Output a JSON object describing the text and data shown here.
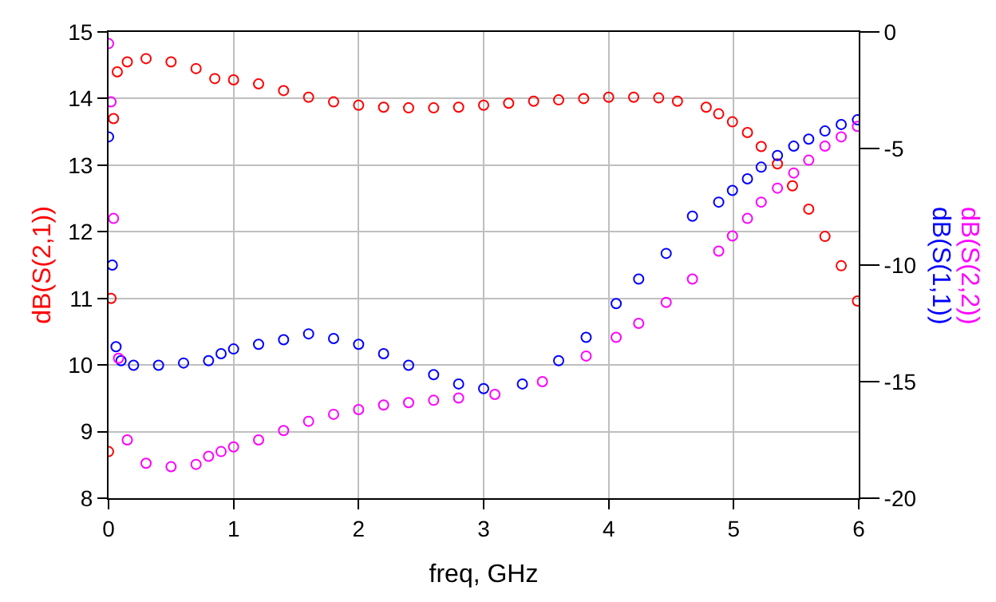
{
  "chart_data": {
    "type": "scatter",
    "xlabel": "freq, GHz",
    "ylabel": "dB(S(2,1))",
    "y2label": [
      "dB(S(1,1))",
      "dB(S(2,2))"
    ],
    "xlim": [
      0,
      6
    ],
    "xticks": [
      0,
      1,
      2,
      3,
      4,
      5,
      6
    ],
    "ylim": [
      8,
      15
    ],
    "yticks": [
      8,
      9,
      10,
      11,
      12,
      13,
      14,
      15
    ],
    "y2lim": [
      -20,
      0
    ],
    "y2ticks": [
      -20,
      -15,
      -10,
      -5,
      0
    ],
    "grid": true,
    "marker": "circle",
    "series": [
      {
        "color": "#ff0000",
        "x": [
          0,
          0.02,
          0.04,
          0.07,
          0.15,
          0.3,
          0.5,
          0.7,
          0.85,
          1.0,
          1.2,
          1.4,
          1.6,
          1.8,
          2.0,
          2.2,
          2.4,
          2.6,
          2.8,
          3.0,
          3.2,
          3.4,
          3.6,
          3.8,
          4.0,
          4.2,
          4.4,
          4.55,
          4.78,
          4.88,
          4.99,
          5.11,
          5.22,
          5.35,
          5.47,
          5.6,
          5.73,
          5.86,
          5.99
        ],
        "values": [
          8.7,
          11,
          13.7,
          14.4,
          14.55,
          14.6,
          14.55,
          14.45,
          14.3,
          14.28,
          14.22,
          14.12,
          14.02,
          13.95,
          13.9,
          13.87,
          13.86,
          13.86,
          13.87,
          13.9,
          13.93,
          13.96,
          13.98,
          14.0,
          14.02,
          14.02,
          14.01,
          13.96,
          13.87,
          13.77,
          13.65,
          13.49,
          13.28,
          13.02,
          12.69,
          12.34,
          11.93,
          11.49,
          10.96
        ]
      },
      {
        "color": "#0000ff",
        "axis": "y2",
        "x": [
          0,
          0.03,
          0.06,
          0.1,
          0.2,
          0.4,
          0.6,
          0.8,
          0.9,
          1.0,
          1.2,
          1.4,
          1.6,
          1.8,
          2.0,
          2.2,
          2.4,
          2.6,
          2.8,
          3.0,
          3.31,
          3.6,
          3.82,
          4.06,
          4.24,
          4.46,
          4.67,
          4.88,
          4.99,
          5.11,
          5.22,
          5.35,
          5.48,
          5.6,
          5.73,
          5.86,
          5.99
        ],
        "values": [
          -4.5,
          -10,
          -13.5,
          -14.1,
          -14.3,
          -14.3,
          -14.2,
          -14.1,
          -13.8,
          -13.6,
          -13.4,
          -13.2,
          -12.95,
          -13.15,
          -13.4,
          -13.8,
          -14.3,
          -14.7,
          -15.1,
          -15.3,
          -15.1,
          -14.1,
          -13.1,
          -11.65,
          -10.6,
          -9.5,
          -7.9,
          -7.3,
          -6.8,
          -6.3,
          -5.8,
          -5.3,
          -4.9,
          -4.6,
          -4.25,
          -3.97,
          -3.77
        ]
      },
      {
        "color": "#ff00ff",
        "axis": "y2",
        "x": [
          0,
          0.02,
          0.04,
          0.08,
          0.15,
          0.3,
          0.5,
          0.7,
          0.8,
          0.9,
          1.0,
          1.2,
          1.4,
          1.6,
          1.8,
          2.0,
          2.2,
          2.4,
          2.6,
          2.8,
          3.09,
          3.47,
          3.82,
          4.06,
          4.24,
          4.46,
          4.67,
          4.88,
          4.99,
          5.11,
          5.22,
          5.35,
          5.48,
          5.6,
          5.73,
          5.86,
          5.99
        ],
        "values": [
          -0.5,
          -3,
          -8,
          -14,
          -17.5,
          -18.5,
          -18.65,
          -18.55,
          -18.2,
          -18.0,
          -17.8,
          -17.5,
          -17.1,
          -16.7,
          -16.4,
          -16.2,
          -16.0,
          -15.9,
          -15.8,
          -15.7,
          -15.55,
          -15.0,
          -13.9,
          -13.1,
          -12.5,
          -11.6,
          -10.6,
          -9.4,
          -8.75,
          -8.0,
          -7.3,
          -6.7,
          -6.05,
          -5.5,
          -4.9,
          -4.5,
          -4.05
        ]
      }
    ]
  }
}
